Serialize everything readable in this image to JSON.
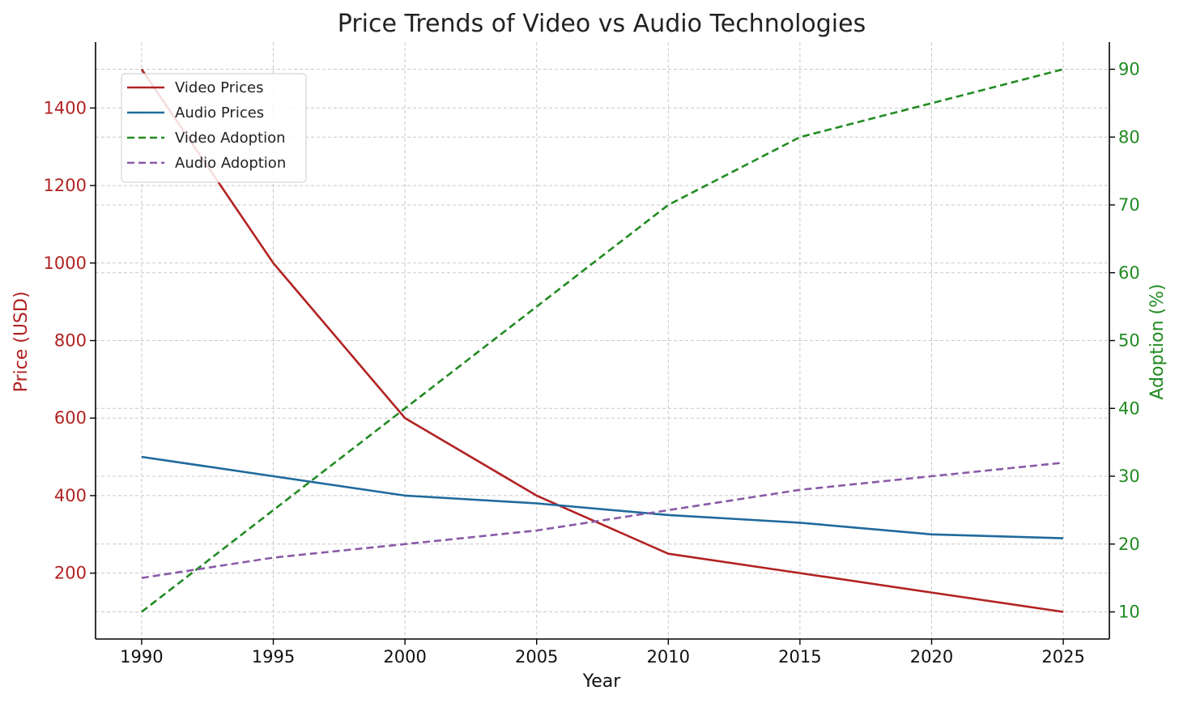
{
  "chart_data": {
    "type": "line",
    "title": "Price Trends of Video vs Audio Technologies",
    "xlabel": "Year",
    "ylabel_left": "Price (USD)",
    "ylabel_right": "Adoption (%)",
    "x": [
      1990,
      1995,
      2000,
      2005,
      2010,
      2015,
      2020,
      2025
    ],
    "x_ticks": [
      1990,
      1995,
      2000,
      2005,
      2010,
      2015,
      2020,
      2025
    ],
    "y_left_ticks": [
      200,
      400,
      600,
      800,
      1000,
      1200,
      1400
    ],
    "y_right_ticks": [
      10,
      20,
      30,
      40,
      50,
      60,
      70,
      80,
      90
    ],
    "xlim": [
      1988.25,
      2026.75
    ],
    "ylim_left": [
      30,
      1570
    ],
    "ylim_right": [
      6,
      94
    ],
    "grid": true,
    "legend_position": "upper-left",
    "series": [
      {
        "name": "Video Prices",
        "axis": "left",
        "style": "solid",
        "color": "#b22222",
        "values": [
          1500,
          1000,
          600,
          400,
          250,
          200,
          150,
          100
        ]
      },
      {
        "name": "Audio Prices",
        "axis": "left",
        "style": "solid",
        "color": "#1f6a9c",
        "values": [
          500,
          450,
          400,
          380,
          350,
          330,
          300,
          290
        ]
      },
      {
        "name": "Video Adoption",
        "axis": "right",
        "style": "dashed",
        "color": "#228b22",
        "values": [
          10,
          25,
          40,
          55,
          70,
          80,
          85,
          90
        ]
      },
      {
        "name": "Audio Adoption",
        "axis": "right",
        "style": "dashed",
        "color": "#8a5aa8",
        "values": [
          15,
          18,
          20,
          22,
          25,
          28,
          30,
          32
        ]
      }
    ],
    "colors": {
      "left_axis": "#b22222",
      "right_axis": "#228b22",
      "grid": "#c8c8c8",
      "axis": "#000000"
    }
  }
}
